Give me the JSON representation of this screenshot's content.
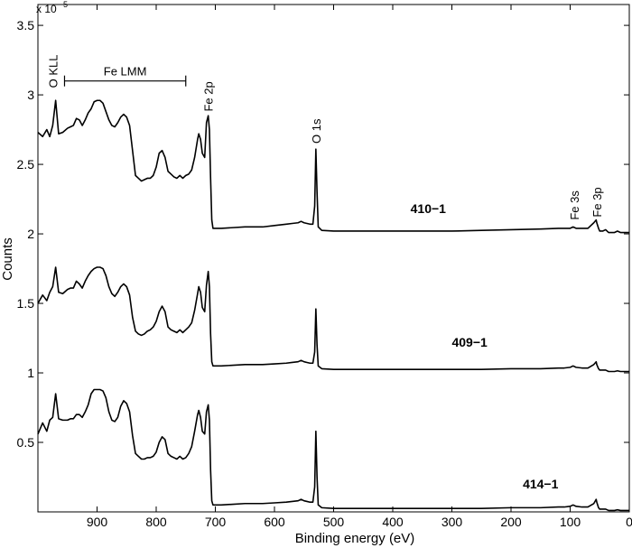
{
  "chart_data": {
    "type": "line",
    "title": "",
    "xlabel": "Binding energy (eV)",
    "ylabel": "Counts",
    "y_exponent_label": "x 10",
    "y_exponent_power": "5",
    "xlim": [
      1000,
      0
    ],
    "ylim": [
      0,
      3.65
    ],
    "x_reversed": true,
    "grid": false,
    "x_ticks": [
      900,
      800,
      700,
      600,
      500,
      400,
      300,
      200,
      100,
      0
    ],
    "x_tick_labels": [
      "900",
      "800",
      "700",
      "600",
      "500",
      "400",
      "300",
      "200",
      "100",
      "0"
    ],
    "y_ticks": [
      0.5,
      1,
      1.5,
      2,
      2.5,
      3,
      3.5
    ],
    "y_tick_labels": [
      "0.5",
      "1",
      "1.5",
      "2",
      "2.5",
      "3",
      "3.5"
    ],
    "annotations": [
      {
        "text": "O KLL",
        "x": 975
      },
      {
        "text": "Fe LMM",
        "x_start": 955,
        "x_end": 750
      },
      {
        "text": "Fe 2p",
        "x": 712
      },
      {
        "text": "O 1s",
        "x": 530
      },
      {
        "text": "Fe 3s",
        "x": 93
      },
      {
        "text": "Fe 3p",
        "x": 55
      }
    ],
    "series": [
      {
        "name": "410−1",
        "label_x": 340,
        "label_y": 2.15,
        "x": [
          1000,
          992,
          985,
          980,
          975,
          970,
          965,
          958,
          950,
          945,
          940,
          935,
          930,
          925,
          920,
          915,
          910,
          905,
          900,
          895,
          890,
          885,
          880,
          875,
          870,
          865,
          860,
          855,
          850,
          845,
          840,
          835,
          830,
          825,
          820,
          815,
          810,
          805,
          800,
          795,
          790,
          785,
          780,
          775,
          770,
          765,
          760,
          755,
          750,
          745,
          740,
          735,
          730,
          728,
          725,
          722,
          718,
          715,
          712,
          710,
          708,
          706,
          704,
          700,
          690,
          670,
          650,
          620,
          600,
          580,
          570,
          560,
          555,
          550,
          545,
          540,
          535,
          532,
          530,
          528,
          526,
          520,
          500,
          450,
          400,
          350,
          300,
          250,
          200,
          150,
          120,
          110,
          100,
          95,
          90,
          80,
          70,
          60,
          56,
          55,
          52,
          50,
          45,
          40,
          35,
          30,
          25,
          20,
          15,
          10,
          5,
          0
        ],
        "y": [
          2.73,
          2.7,
          2.75,
          2.7,
          2.78,
          2.96,
          2.72,
          2.73,
          2.76,
          2.77,
          2.78,
          2.83,
          2.82,
          2.78,
          2.82,
          2.87,
          2.9,
          2.95,
          2.96,
          2.96,
          2.94,
          2.88,
          2.82,
          2.78,
          2.77,
          2.8,
          2.84,
          2.86,
          2.84,
          2.78,
          2.6,
          2.42,
          2.4,
          2.38,
          2.39,
          2.4,
          2.4,
          2.42,
          2.48,
          2.58,
          2.6,
          2.55,
          2.45,
          2.43,
          2.41,
          2.4,
          2.42,
          2.4,
          2.42,
          2.43,
          2.46,
          2.55,
          2.68,
          2.72,
          2.68,
          2.58,
          2.55,
          2.8,
          2.85,
          2.75,
          2.4,
          2.1,
          2.04,
          2.04,
          2.04,
          2.045,
          2.05,
          2.05,
          2.06,
          2.07,
          2.075,
          2.08,
          2.09,
          2.08,
          2.075,
          2.07,
          2.07,
          2.2,
          2.61,
          2.3,
          2.05,
          2.025,
          2.02,
          2.02,
          2.02,
          2.02,
          2.02,
          2.025,
          2.03,
          2.035,
          2.04,
          2.04,
          2.04,
          2.05,
          2.04,
          2.04,
          2.04,
          2.08,
          2.1,
          2.08,
          2.04,
          2.02,
          2.02,
          2.03,
          2.01,
          2.01,
          2.01,
          2.02,
          2.01,
          2.01,
          2.01,
          2.01
        ]
      },
      {
        "name": "409−1",
        "label_x": 270,
        "label_y": 1.19,
        "x": [
          1000,
          992,
          985,
          980,
          975,
          970,
          965,
          958,
          950,
          945,
          940,
          935,
          930,
          925,
          920,
          915,
          910,
          905,
          900,
          895,
          890,
          885,
          880,
          875,
          870,
          865,
          860,
          855,
          850,
          845,
          840,
          835,
          830,
          825,
          820,
          815,
          810,
          805,
          800,
          795,
          790,
          785,
          780,
          775,
          770,
          765,
          760,
          755,
          750,
          745,
          740,
          735,
          730,
          728,
          725,
          722,
          718,
          715,
          712,
          710,
          708,
          706,
          704,
          700,
          690,
          670,
          650,
          620,
          600,
          580,
          570,
          560,
          555,
          550,
          545,
          540,
          535,
          532,
          530,
          528,
          526,
          520,
          500,
          450,
          400,
          350,
          300,
          250,
          200,
          150,
          120,
          110,
          100,
          95,
          90,
          80,
          70,
          60,
          56,
          55,
          52,
          50,
          45,
          40,
          35,
          30,
          25,
          20,
          15,
          10,
          5,
          0
        ],
        "y": [
          1.5,
          1.56,
          1.52,
          1.58,
          1.62,
          1.76,
          1.58,
          1.57,
          1.6,
          1.61,
          1.61,
          1.66,
          1.64,
          1.61,
          1.66,
          1.7,
          1.73,
          1.75,
          1.76,
          1.76,
          1.75,
          1.7,
          1.62,
          1.57,
          1.55,
          1.58,
          1.62,
          1.64,
          1.62,
          1.56,
          1.4,
          1.3,
          1.28,
          1.27,
          1.28,
          1.3,
          1.31,
          1.33,
          1.37,
          1.44,
          1.48,
          1.44,
          1.33,
          1.31,
          1.3,
          1.29,
          1.31,
          1.29,
          1.31,
          1.33,
          1.36,
          1.45,
          1.57,
          1.62,
          1.58,
          1.47,
          1.44,
          1.63,
          1.73,
          1.62,
          1.28,
          1.08,
          1.05,
          1.05,
          1.05,
          1.055,
          1.06,
          1.06,
          1.065,
          1.07,
          1.075,
          1.08,
          1.09,
          1.08,
          1.075,
          1.07,
          1.07,
          1.15,
          1.46,
          1.2,
          1.05,
          1.03,
          1.025,
          1.025,
          1.025,
          1.025,
          1.025,
          1.025,
          1.03,
          1.03,
          1.035,
          1.035,
          1.04,
          1.05,
          1.04,
          1.035,
          1.035,
          1.06,
          1.08,
          1.06,
          1.03,
          1.02,
          1.02,
          1.02,
          1.01,
          1.01,
          1.01,
          1.015,
          1.01,
          1.01,
          1.01,
          1.01
        ]
      },
      {
        "name": "414−1",
        "label_x": 150,
        "label_y": 0.17,
        "x": [
          1000,
          992,
          985,
          980,
          975,
          970,
          965,
          958,
          950,
          945,
          940,
          935,
          930,
          925,
          920,
          915,
          910,
          905,
          900,
          895,
          890,
          885,
          880,
          875,
          870,
          865,
          860,
          855,
          850,
          845,
          840,
          835,
          830,
          825,
          820,
          815,
          810,
          805,
          800,
          795,
          790,
          785,
          780,
          775,
          770,
          765,
          760,
          755,
          750,
          745,
          740,
          735,
          730,
          728,
          725,
          722,
          718,
          715,
          712,
          710,
          708,
          706,
          704,
          700,
          690,
          670,
          650,
          620,
          600,
          580,
          570,
          560,
          555,
          550,
          545,
          540,
          535,
          532,
          530,
          528,
          526,
          520,
          500,
          450,
          400,
          350,
          300,
          250,
          200,
          150,
          120,
          110,
          100,
          95,
          90,
          80,
          70,
          60,
          56,
          55,
          52,
          50,
          45,
          40,
          35,
          30,
          25,
          20,
          15,
          10,
          5,
          0
        ],
        "y": [
          0.56,
          0.64,
          0.58,
          0.66,
          0.68,
          0.85,
          0.67,
          0.66,
          0.66,
          0.67,
          0.67,
          0.7,
          0.7,
          0.68,
          0.72,
          0.77,
          0.85,
          0.88,
          0.88,
          0.88,
          0.87,
          0.82,
          0.72,
          0.66,
          0.65,
          0.68,
          0.76,
          0.8,
          0.78,
          0.72,
          0.55,
          0.42,
          0.4,
          0.38,
          0.38,
          0.39,
          0.39,
          0.4,
          0.43,
          0.5,
          0.54,
          0.52,
          0.42,
          0.4,
          0.39,
          0.38,
          0.4,
          0.38,
          0.39,
          0.42,
          0.47,
          0.58,
          0.7,
          0.73,
          0.68,
          0.58,
          0.56,
          0.72,
          0.77,
          0.66,
          0.3,
          0.08,
          0.05,
          0.05,
          0.05,
          0.055,
          0.06,
          0.06,
          0.065,
          0.07,
          0.075,
          0.08,
          0.09,
          0.08,
          0.075,
          0.07,
          0.07,
          0.18,
          0.58,
          0.25,
          0.05,
          0.03,
          0.025,
          0.025,
          0.025,
          0.025,
          0.025,
          0.025,
          0.03,
          0.03,
          0.035,
          0.035,
          0.04,
          0.05,
          0.04,
          0.035,
          0.035,
          0.06,
          0.09,
          0.07,
          0.03,
          0.02,
          0.02,
          0.02,
          0.01,
          0.01,
          0.01,
          0.015,
          0.01,
          0.01,
          0.01,
          0.01
        ]
      }
    ]
  }
}
